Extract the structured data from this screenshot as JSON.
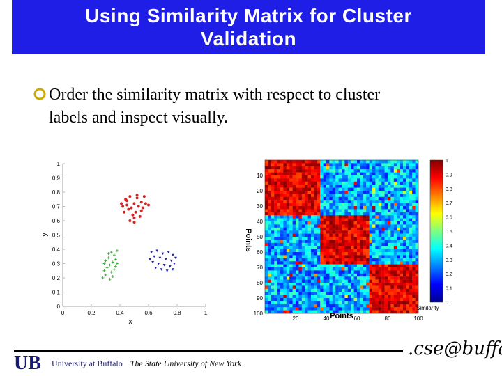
{
  "slide": {
    "title_line1": "Using Similarity Matrix for Cluster",
    "title_line2": "Validation",
    "bullet_line1": "Order the similarity matrix with respect to cluster",
    "bullet_line2": "labels and inspect visually.",
    "footer_university": "University at Buffalo",
    "footer_suny": "The State University of New York",
    "footer_logo_text": ".cse@buffalo",
    "ub_logo_text": "UB"
  },
  "colors": {
    "title_bg": "#1e1ee6",
    "title_fg": "#ffffff",
    "bullet": "#ccaa00"
  },
  "chart_data": [
    {
      "type": "scatter",
      "xlabel": "x",
      "ylabel": "y",
      "xlim": [
        0,
        1
      ],
      "ylim": [
        0,
        1
      ],
      "xticks": [
        "0",
        "0.2",
        "0.4",
        "0.6",
        "0.8",
        "1"
      ],
      "yticks": [
        "0",
        "0.1",
        "0.2",
        "0.3",
        "0.4",
        "0.5",
        "0.6",
        "0.7",
        "0.8",
        "0.9",
        "1"
      ],
      "series": [
        {
          "color": "#dd2020",
          "marker": "circle",
          "points": [
            [
              0.44,
              0.75
            ],
            [
              0.47,
              0.77
            ],
            [
              0.52,
              0.76
            ],
            [
              0.57,
              0.77
            ],
            [
              0.55,
              0.73
            ],
            [
              0.5,
              0.72
            ],
            [
              0.45,
              0.71
            ],
            [
              0.42,
              0.7
            ],
            [
              0.48,
              0.69
            ],
            [
              0.53,
              0.7
            ],
            [
              0.58,
              0.72
            ],
            [
              0.6,
              0.71
            ],
            [
              0.46,
              0.68
            ],
            [
              0.51,
              0.66
            ],
            [
              0.55,
              0.67
            ],
            [
              0.43,
              0.66
            ],
            [
              0.49,
              0.64
            ],
            [
              0.5,
              0.62
            ],
            [
              0.54,
              0.63
            ],
            [
              0.47,
              0.6
            ],
            [
              0.52,
              0.78
            ],
            [
              0.45,
              0.74
            ],
            [
              0.56,
              0.69
            ],
            [
              0.41,
              0.72
            ],
            [
              0.5,
              0.59
            ]
          ]
        },
        {
          "color": "#40b040",
          "marker": "plus",
          "points": [
            [
              0.34,
              0.38
            ],
            [
              0.38,
              0.39
            ],
            [
              0.36,
              0.36
            ],
            [
              0.32,
              0.34
            ],
            [
              0.37,
              0.33
            ],
            [
              0.35,
              0.31
            ],
            [
              0.3,
              0.32
            ],
            [
              0.33,
              0.29
            ],
            [
              0.38,
              0.3
            ],
            [
              0.31,
              0.27
            ],
            [
              0.36,
              0.26
            ],
            [
              0.29,
              0.25
            ],
            [
              0.34,
              0.24
            ],
            [
              0.3,
              0.22
            ],
            [
              0.35,
              0.21
            ],
            [
              0.28,
              0.2
            ],
            [
              0.33,
              0.19
            ],
            [
              0.37,
              0.28
            ],
            [
              0.32,
              0.37
            ],
            [
              0.29,
              0.3
            ]
          ]
        },
        {
          "color": "#2020c0",
          "marker": "triangle",
          "points": [
            [
              0.62,
              0.38
            ],
            [
              0.66,
              0.39
            ],
            [
              0.7,
              0.37
            ],
            [
              0.74,
              0.38
            ],
            [
              0.77,
              0.36
            ],
            [
              0.64,
              0.35
            ],
            [
              0.68,
              0.34
            ],
            [
              0.72,
              0.33
            ],
            [
              0.76,
              0.32
            ],
            [
              0.63,
              0.31
            ],
            [
              0.67,
              0.3
            ],
            [
              0.71,
              0.29
            ],
            [
              0.75,
              0.28
            ],
            [
              0.78,
              0.3
            ],
            [
              0.65,
              0.27
            ],
            [
              0.69,
              0.26
            ],
            [
              0.73,
              0.25
            ],
            [
              0.77,
              0.26
            ],
            [
              0.61,
              0.33
            ],
            [
              0.79,
              0.34
            ]
          ]
        }
      ]
    },
    {
      "type": "heatmap",
      "xlabel": "Points",
      "ylabel": "Points",
      "colorbar_label": "Similarity",
      "xticks": [
        "20",
        "40",
        "60",
        "80",
        "100"
      ],
      "yticks": [
        "10",
        "20",
        "30",
        "40",
        "50",
        "60",
        "70",
        "80",
        "90",
        "100"
      ],
      "colorbar_ticks": [
        "0",
        "0.1",
        "0.2",
        "0.3",
        "0.4",
        "0.5",
        "0.6",
        "0.7",
        "0.8",
        "0.9",
        "1"
      ],
      "n": 100,
      "blocks": [
        [
          1,
          35
        ],
        [
          36,
          67
        ],
        [
          68,
          100
        ]
      ],
      "within_similarity": 0.9,
      "between_similarity": 0.3
    }
  ]
}
